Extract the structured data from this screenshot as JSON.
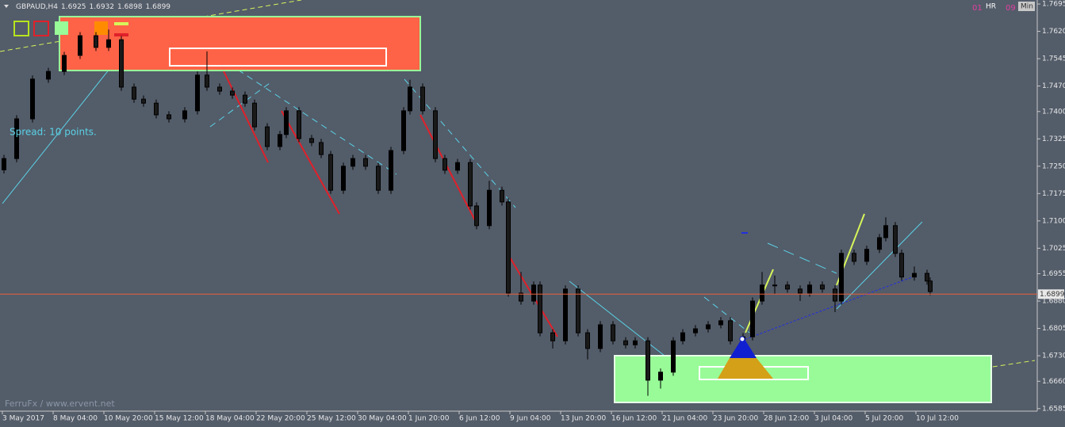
{
  "chart_data": {
    "type": "candlestick",
    "title": "GBPAUD,H4",
    "title_values": [
      1.6925,
      1.6932,
      1.6898,
      1.6899
    ],
    "bar_index": [
      0,
      4,
      9,
      14,
      19,
      24,
      29,
      33,
      37,
      41,
      44,
      48,
      52,
      57,
      61,
      64,
      68,
      72,
      76,
      79,
      83,
      87,
      89,
      93,
      97,
      100,
      103,
      107,
      110,
      114,
      118,
      122,
      126,
      128,
      132,
      136,
      139,
      143,
      147,
      149,
      153,
      157,
      159,
      163,
      167,
      169,
      173,
      177,
      181,
      184,
      188,
      192,
      196,
      199,
      203,
      207,
      211,
      214,
      218,
      222,
      226,
      229,
      233,
      236,
      239,
      243,
      247,
      251,
      254,
      258,
      262,
      264,
      268,
      272,
      276,
      278,
      281,
      283,
      287,
      291,
      292
    ],
    "open": [
      1.724,
      1.7271,
      1.738,
      1.7489,
      1.751,
      1.7554,
      1.7608,
      1.7576,
      1.7597,
      1.7467,
      1.7434,
      1.7423,
      1.7391,
      1.738,
      1.7402,
      1.75,
      1.7467,
      1.7456,
      1.7445,
      1.7423,
      1.7358,
      1.7304,
      1.7337,
      1.7402,
      1.7326,
      1.7315,
      1.7282,
      1.7184,
      1.725,
      1.7271,
      1.725,
      1.7184,
      1.7293,
      1.7402,
      1.7467,
      1.7402,
      1.7271,
      1.7239,
      1.726,
      1.7141,
      1.7087,
      1.7184,
      1.7152,
      1.6902,
      1.688,
      1.6924,
      1.6793,
      1.6771,
      1.6913,
      1.6793,
      1.675,
      1.6815,
      1.6771,
      1.676,
      1.6771,
      1.6663,
      1.6685,
      1.6771,
      1.6793,
      1.6804,
      1.6815,
      1.6826,
      1.6771,
      1.6782,
      1.688,
      1.6924,
      1.6924,
      1.6913,
      1.6902,
      1.6924,
      1.6913,
      1.688,
      1.7011,
      1.6989,
      1.7022,
      1.7054,
      1.7087,
      1.7011,
      1.6946,
      1.6956,
      1.6935
    ],
    "high": [
      1.7281,
      1.739,
      1.7499,
      1.752,
      1.7564,
      1.7618,
      1.7618,
      1.7625,
      1.7607,
      1.7477,
      1.7444,
      1.7433,
      1.7401,
      1.7412,
      1.751,
      1.7565,
      1.7477,
      1.7466,
      1.7455,
      1.7433,
      1.7368,
      1.7347,
      1.7412,
      1.7412,
      1.7336,
      1.7325,
      1.7292,
      1.726,
      1.7281,
      1.7281,
      1.726,
      1.7303,
      1.7412,
      1.7487,
      1.7477,
      1.7412,
      1.7281,
      1.727,
      1.727,
      1.7151,
      1.721,
      1.7194,
      1.7162,
      1.696,
      1.6934,
      1.6934,
      1.6803,
      1.6923,
      1.6923,
      1.6803,
      1.6825,
      1.6825,
      1.6781,
      1.6781,
      1.6781,
      1.6695,
      1.6781,
      1.6803,
      1.6814,
      1.6825,
      1.6836,
      1.6836,
      1.6792,
      1.689,
      1.696,
      1.695,
      1.6934,
      1.6923,
      1.6934,
      1.6934,
      1.6923,
      1.7021,
      1.7021,
      1.7032,
      1.7064,
      1.711,
      1.7097,
      1.7021,
      1.6975,
      1.6966,
      1.6945
    ],
    "low": [
      1.723,
      1.7261,
      1.737,
      1.7479,
      1.75,
      1.7544,
      1.7566,
      1.7566,
      1.7457,
      1.7424,
      1.7413,
      1.7381,
      1.737,
      1.737,
      1.7392,
      1.7457,
      1.7446,
      1.7435,
      1.7413,
      1.7348,
      1.7294,
      1.7294,
      1.7327,
      1.7316,
      1.7305,
      1.7272,
      1.7174,
      1.7174,
      1.724,
      1.724,
      1.7174,
      1.7174,
      1.7283,
      1.7392,
      1.7392,
      1.7261,
      1.7229,
      1.7229,
      1.7131,
      1.7077,
      1.7077,
      1.7142,
      1.6892,
      1.687,
      1.687,
      1.6783,
      1.675,
      1.6761,
      1.6783,
      1.672,
      1.674,
      1.6761,
      1.675,
      1.675,
      1.662,
      1.664,
      1.6675,
      1.6761,
      1.6783,
      1.6794,
      1.6805,
      1.6761,
      1.674,
      1.6772,
      1.687,
      1.69,
      1.6903,
      1.688,
      1.6892,
      1.6903,
      1.685,
      1.687,
      1.6979,
      1.6979,
      1.7012,
      1.7044,
      1.7001,
      1.6936,
      1.6936,
      1.6925,
      1.6896
    ],
    "close": [
      1.7271,
      1.738,
      1.7489,
      1.751,
      1.7554,
      1.7608,
      1.7576,
      1.7597,
      1.7467,
      1.7434,
      1.7423,
      1.7391,
      1.738,
      1.7402,
      1.75,
      1.7467,
      1.7456,
      1.7445,
      1.7423,
      1.7358,
      1.7304,
      1.7337,
      1.7402,
      1.7326,
      1.7315,
      1.7282,
      1.7184,
      1.725,
      1.7271,
      1.725,
      1.7184,
      1.7293,
      1.7402,
      1.7467,
      1.7402,
      1.7271,
      1.7239,
      1.726,
      1.7141,
      1.7087,
      1.7184,
      1.7152,
      1.6902,
      1.688,
      1.6924,
      1.6793,
      1.6771,
      1.6913,
      1.6793,
      1.675,
      1.6815,
      1.6771,
      1.676,
      1.6771,
      1.6663,
      1.6685,
      1.6771,
      1.6793,
      1.6804,
      1.6815,
      1.6826,
      1.6771,
      1.6782,
      1.688,
      1.6924,
      1.6924,
      1.6913,
      1.6902,
      1.6924,
      1.6913,
      1.688,
      1.7011,
      1.6989,
      1.7022,
      1.7054,
      1.7087,
      1.7011,
      1.6946,
      1.6956,
      1.6935,
      1.6906
    ],
    "ylim": [
      1.6578,
      1.7706
    ],
    "yticks": [
      1.7695,
      {
        "value": 1.762,
        "label": "1.7620"
      },
      1.7545,
      {
        "value": 1.747,
        "label": "1.7470"
      },
      {
        "value": 1.74,
        "label": "1.7400"
      },
      1.7325,
      {
        "value": 1.725,
        "label": "1.7250"
      },
      1.7175,
      {
        "value": 1.71,
        "label": "1.7100"
      },
      1.7025,
      1.6955,
      {
        "value": 1.688,
        "label": "1.6880"
      },
      1.6805,
      {
        "value": 1.673,
        "label": "1.6730"
      },
      {
        "value": 1.666,
        "label": "1.6660"
      },
      1.6585
    ],
    "xticks": [
      {
        "value": 0,
        "label": "3 May 2017"
      },
      {
        "value": 16,
        "label": "8 May 04:00"
      },
      {
        "value": 32,
        "label": "10 May 20:00"
      },
      {
        "value": 48,
        "label": "15 May 12:00"
      },
      {
        "value": 64,
        "label": "18 May 04:00"
      },
      {
        "value": 80,
        "label": "22 May 20:00"
      },
      {
        "value": 96,
        "label": "25 May 12:00"
      },
      {
        "value": 112,
        "label": "30 May 04:00"
      },
      {
        "value": 128,
        "label": "1 Jun 20:00"
      },
      {
        "value": 144,
        "label": "6 Jun 12:00"
      },
      {
        "value": 160,
        "label": "9 Jun 04:00"
      },
      {
        "value": 176,
        "label": "13 Jun 20:00"
      },
      {
        "value": 192,
        "label": "16 Jun 12:00"
      },
      {
        "value": 208,
        "label": "21 Jun 04:00"
      },
      {
        "value": 224,
        "label": "23 Jun 20:00"
      },
      {
        "value": 240,
        "label": "28 Jun 12:00"
      },
      {
        "value": 256,
        "label": "3 Jul 04:00"
      },
      {
        "value": 272,
        "label": "5 Jul 20:00"
      },
      {
        "value": 288,
        "label": "10 Jul 12:00"
      }
    ],
    "current_price": 1.6899,
    "spread_text": "Spread: 10 points.",
    "footer": "FerruFx / www.ervent.net",
    "timer": [
      "01",
      "HR",
      "09",
      "Min"
    ]
  }
}
